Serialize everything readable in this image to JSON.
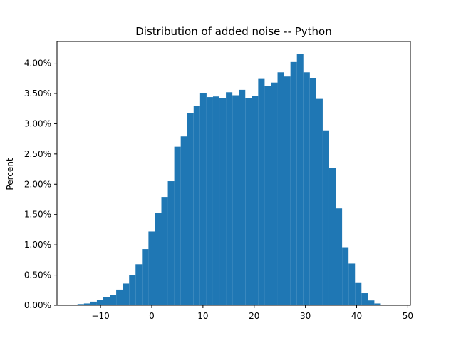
{
  "chart_data": {
    "type": "bar",
    "title": "Distribution of added noise -- Python",
    "xlabel": "",
    "ylabel": "Percent",
    "xlim": [
      -18.5,
      50.5
    ],
    "ylim": [
      0,
      4.36
    ],
    "x_ticks": [
      -10,
      0,
      10,
      20,
      30,
      40,
      50
    ],
    "x_tick_labels": [
      "−10",
      "0",
      "10",
      "20",
      "30",
      "40",
      "50"
    ],
    "y_ticks": [
      0,
      0.5,
      1.0,
      1.5,
      2.0,
      2.5,
      3.0,
      3.5,
      4.0
    ],
    "y_tick_labels": [
      "0.00%",
      "0.50%",
      "1.00%",
      "1.50%",
      "2.00%",
      "2.50%",
      "3.00%",
      "3.50%",
      "4.00%"
    ],
    "bar_color": "#1f77b4",
    "grid": false,
    "bin_width": 1.26,
    "bin_edges_start": -14.5,
    "values": [
      0.02,
      0.03,
      0.06,
      0.09,
      0.13,
      0.17,
      0.26,
      0.36,
      0.5,
      0.68,
      0.93,
      1.22,
      1.52,
      1.79,
      2.05,
      2.62,
      2.79,
      3.17,
      3.29,
      3.5,
      3.44,
      3.45,
      3.42,
      3.52,
      3.47,
      3.56,
      3.42,
      3.46,
      3.74,
      3.62,
      3.68,
      3.85,
      3.78,
      4.02,
      4.15,
      3.85,
      3.75,
      3.41,
      2.89,
      2.27,
      1.6,
      0.96,
      0.69,
      0.38,
      0.2,
      0.08,
      0.03,
      0.01
    ]
  }
}
